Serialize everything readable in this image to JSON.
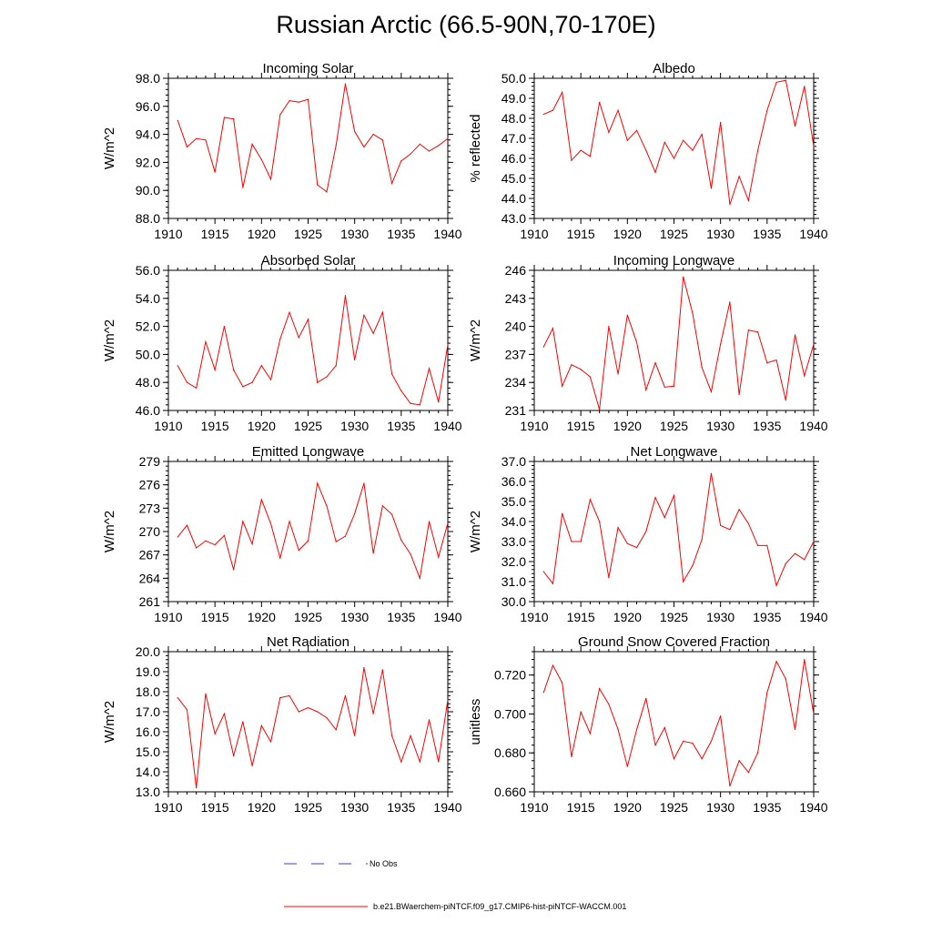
{
  "figure": {
    "title": "Russian Arctic (66.5-90N,70-170E)",
    "legend": [
      {
        "label": "No Obs",
        "color": "#3b3bd6",
        "style": "dashed"
      },
      {
        "label": "b.e21.BWaerchem-piNTCF.f09_g17.CMIP6-hist-piNTCF-WACCM.001",
        "color": "#ff0000",
        "style": "solid"
      }
    ]
  },
  "chart_data": [
    {
      "type": "line",
      "title": "Incoming Solar",
      "xlabel": "",
      "ylabel": "W/m^2",
      "xlim": [
        1910,
        1940
      ],
      "ylim": [
        88,
        98
      ],
      "xticks": [
        1910,
        1915,
        1920,
        1925,
        1930,
        1935,
        1940
      ],
      "yticks": [
        "88.0",
        "90.0",
        "92.0",
        "94.0",
        "96.0",
        "98.0"
      ],
      "x": [
        1911,
        1912,
        1913,
        1914,
        1915,
        1916,
        1917,
        1918,
        1919,
        1920,
        1921,
        1922,
        1923,
        1924,
        1925,
        1926,
        1927,
        1928,
        1929,
        1930,
        1931,
        1932,
        1933,
        1934,
        1935,
        1936,
        1937,
        1938,
        1939,
        1940
      ],
      "series": [
        {
          "color": "#ff0000",
          "values": [
            95.0,
            93.1,
            93.7,
            93.6,
            91.3,
            95.2,
            95.1,
            90.2,
            93.3,
            92.2,
            90.8,
            95.4,
            96.4,
            96.3,
            96.5,
            90.4,
            89.9,
            93.2,
            97.6,
            94.2,
            93.1,
            94.0,
            93.6,
            90.5,
            92.1,
            92.6,
            93.3,
            92.8,
            93.2,
            93.7
          ]
        }
      ]
    },
    {
      "type": "line",
      "title": "Albedo",
      "xlabel": "",
      "ylabel": "% reflected",
      "xlim": [
        1910,
        1940
      ],
      "ylim": [
        43,
        50
      ],
      "xticks": [
        1910,
        1915,
        1920,
        1925,
        1930,
        1935,
        1940
      ],
      "yticks": [
        "43.0",
        "44.0",
        "45.0",
        "46.0",
        "47.0",
        "48.0",
        "49.0",
        "50.0"
      ],
      "x": [
        1911,
        1912,
        1913,
        1914,
        1915,
        1916,
        1917,
        1918,
        1919,
        1920,
        1921,
        1922,
        1923,
        1924,
        1925,
        1926,
        1927,
        1928,
        1929,
        1930,
        1931,
        1932,
        1933,
        1934,
        1935,
        1936,
        1937,
        1938,
        1939,
        1940
      ],
      "series": [
        {
          "color": "#ff0000",
          "values": [
            48.2,
            48.4,
            49.3,
            45.9,
            46.4,
            46.1,
            48.8,
            47.3,
            48.4,
            46.9,
            47.4,
            46.4,
            45.3,
            46.8,
            46.0,
            46.9,
            46.4,
            47.2,
            44.5,
            47.8,
            43.7,
            45.1,
            43.9,
            46.4,
            48.4,
            49.8,
            49.9,
            47.6,
            49.6,
            46.6
          ]
        }
      ]
    },
    {
      "type": "line",
      "title": "Absorbed Solar",
      "xlabel": "",
      "ylabel": "W/m^2",
      "xlim": [
        1910,
        1940
      ],
      "ylim": [
        46,
        56
      ],
      "xticks": [
        1910,
        1915,
        1920,
        1925,
        1930,
        1935,
        1940
      ],
      "yticks": [
        "46.0",
        "48.0",
        "50.0",
        "52.0",
        "54.0",
        "56.0"
      ],
      "x": [
        1911,
        1912,
        1913,
        1914,
        1915,
        1916,
        1917,
        1918,
        1919,
        1920,
        1921,
        1922,
        1923,
        1924,
        1925,
        1926,
        1927,
        1928,
        1929,
        1930,
        1931,
        1932,
        1933,
        1934,
        1935,
        1936,
        1937,
        1938,
        1939,
        1940
      ],
      "series": [
        {
          "color": "#ff0000",
          "values": [
            49.2,
            48.0,
            47.6,
            50.9,
            48.9,
            52.0,
            48.9,
            47.7,
            48.0,
            49.2,
            48.2,
            51.1,
            53.0,
            51.2,
            52.5,
            48.0,
            48.4,
            49.2,
            54.2,
            49.6,
            52.8,
            51.5,
            53.0,
            48.6,
            47.4,
            46.5,
            46.4,
            49.0,
            46.6,
            50.7
          ]
        }
      ]
    },
    {
      "type": "line",
      "title": "Incoming Longwave",
      "xlabel": "",
      "ylabel": "W/m^2",
      "xlim": [
        1910,
        1940
      ],
      "ylim": [
        231,
        246
      ],
      "xticks": [
        1910,
        1915,
        1920,
        1925,
        1930,
        1935,
        1940
      ],
      "yticks": [
        "231",
        "234",
        "237",
        "240",
        "243",
        "246"
      ],
      "x": [
        1911,
        1912,
        1913,
        1914,
        1915,
        1916,
        1917,
        1918,
        1919,
        1920,
        1921,
        1922,
        1923,
        1924,
        1925,
        1926,
        1927,
        1928,
        1929,
        1930,
        1931,
        1932,
        1933,
        1934,
        1935,
        1936,
        1937,
        1938,
        1939,
        1940
      ],
      "series": [
        {
          "color": "#ff0000",
          "values": [
            237.8,
            239.8,
            233.6,
            235.9,
            235.4,
            234.6,
            231.1,
            240.0,
            234.9,
            241.2,
            238.3,
            233.2,
            236.1,
            233.5,
            233.6,
            245.3,
            241.4,
            235.6,
            233.0,
            238.1,
            242.6,
            232.7,
            239.6,
            239.4,
            236.1,
            236.4,
            232.1,
            239.1,
            234.7,
            238.1
          ]
        }
      ]
    },
    {
      "type": "line",
      "title": "Emitted Longwave",
      "xlabel": "",
      "ylabel": "W/m^2",
      "xlim": [
        1910,
        1940
      ],
      "ylim": [
        261,
        279
      ],
      "xticks": [
        1910,
        1915,
        1920,
        1925,
        1930,
        1935,
        1940
      ],
      "yticks": [
        "261",
        "264",
        "267",
        "270",
        "273",
        "276",
        "279"
      ],
      "x": [
        1911,
        1912,
        1913,
        1914,
        1915,
        1916,
        1917,
        1918,
        1919,
        1920,
        1921,
        1922,
        1923,
        1924,
        1925,
        1926,
        1927,
        1928,
        1929,
        1930,
        1931,
        1932,
        1933,
        1934,
        1935,
        1936,
        1937,
        1938,
        1939,
        1940
      ],
      "series": [
        {
          "color": "#ff0000",
          "values": [
            269.3,
            270.8,
            267.9,
            268.8,
            268.3,
            269.5,
            265.1,
            271.3,
            268.4,
            274.1,
            271.0,
            266.6,
            271.3,
            267.6,
            268.8,
            276.2,
            273.3,
            268.7,
            269.4,
            272.3,
            276.2,
            267.2,
            273.3,
            272.2,
            268.9,
            267.1,
            264.0,
            271.3,
            266.7,
            271.1
          ]
        }
      ]
    },
    {
      "type": "line",
      "title": "Net Longwave",
      "xlabel": "",
      "ylabel": "W/m^2",
      "xlim": [
        1910,
        1940
      ],
      "ylim": [
        30,
        37
      ],
      "xticks": [
        1910,
        1915,
        1920,
        1925,
        1930,
        1935,
        1940
      ],
      "yticks": [
        "30.0",
        "31.0",
        "32.0",
        "33.0",
        "34.0",
        "35.0",
        "36.0",
        "37.0"
      ],
      "x": [
        1911,
        1912,
        1913,
        1914,
        1915,
        1916,
        1917,
        1918,
        1919,
        1920,
        1921,
        1922,
        1923,
        1924,
        1925,
        1926,
        1927,
        1928,
        1929,
        1930,
        1931,
        1932,
        1933,
        1934,
        1935,
        1936,
        1937,
        1938,
        1939,
        1940
      ],
      "series": [
        {
          "color": "#ff0000",
          "values": [
            31.5,
            30.9,
            34.4,
            33.0,
            33.0,
            35.1,
            34.0,
            31.2,
            33.7,
            32.9,
            32.7,
            33.5,
            35.2,
            34.2,
            35.3,
            31.0,
            31.8,
            33.1,
            36.4,
            33.8,
            33.6,
            34.6,
            33.9,
            32.8,
            32.8,
            30.8,
            31.9,
            32.4,
            32.1,
            33.0
          ]
        }
      ]
    },
    {
      "type": "line",
      "title": "Net Radiation",
      "xlabel": "",
      "ylabel": "W/m^2",
      "xlim": [
        1910,
        1940
      ],
      "ylim": [
        13,
        20
      ],
      "xticks": [
        1910,
        1915,
        1920,
        1925,
        1930,
        1935,
        1940
      ],
      "yticks": [
        "13.0",
        "14.0",
        "15.0",
        "16.0",
        "17.0",
        "18.0",
        "19.0",
        "20.0"
      ],
      "x": [
        1911,
        1912,
        1913,
        1914,
        1915,
        1916,
        1917,
        1918,
        1919,
        1920,
        1921,
        1922,
        1923,
        1924,
        1925,
        1926,
        1927,
        1928,
        1929,
        1930,
        1931,
        1932,
        1933,
        1934,
        1935,
        1936,
        1937,
        1938,
        1939,
        1940
      ],
      "series": [
        {
          "color": "#ff0000",
          "values": [
            17.7,
            17.1,
            13.2,
            17.9,
            15.9,
            16.9,
            14.8,
            16.5,
            14.3,
            16.3,
            15.5,
            17.7,
            17.8,
            17.0,
            17.2,
            17.0,
            16.7,
            16.1,
            17.8,
            15.8,
            19.2,
            16.9,
            19.1,
            15.8,
            14.5,
            15.8,
            14.5,
            16.6,
            14.5,
            17.6
          ]
        }
      ]
    },
    {
      "type": "line",
      "title": "Ground Snow Covered Fraction",
      "xlabel": "",
      "ylabel": "unitless",
      "xlim": [
        1910,
        1940
      ],
      "ylim": [
        0.66,
        0.732
      ],
      "xticks": [
        1910,
        1915,
        1920,
        1925,
        1930,
        1935,
        1940
      ],
      "yticks": [
        "0.660",
        "0.680",
        "0.700",
        "0.720"
      ],
      "x": [
        1911,
        1912,
        1913,
        1914,
        1915,
        1916,
        1917,
        1918,
        1919,
        1920,
        1921,
        1922,
        1923,
        1924,
        1925,
        1926,
        1927,
        1928,
        1929,
        1930,
        1931,
        1932,
        1933,
        1934,
        1935,
        1936,
        1937,
        1938,
        1939,
        1940
      ],
      "series": [
        {
          "color": "#ff0000",
          "values": [
            0.711,
            0.725,
            0.716,
            0.678,
            0.701,
            0.69,
            0.713,
            0.705,
            0.692,
            0.673,
            0.692,
            0.708,
            0.684,
            0.693,
            0.677,
            0.686,
            0.685,
            0.677,
            0.686,
            0.699,
            0.663,
            0.676,
            0.67,
            0.68,
            0.711,
            0.727,
            0.718,
            0.692,
            0.728,
            0.7
          ]
        }
      ]
    }
  ]
}
